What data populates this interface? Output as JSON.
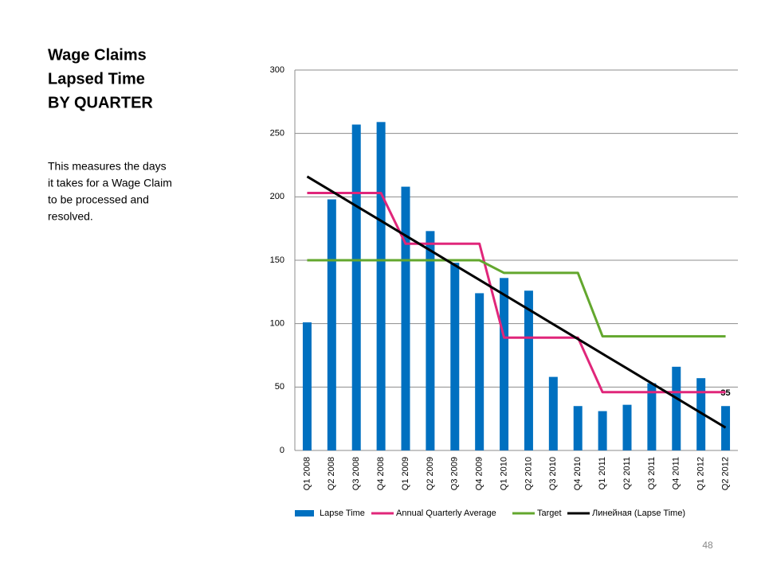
{
  "title_lines": [
    "Wage Claims",
    "Lapsed Time",
    "BY QUARTER"
  ],
  "description_lines": [
    "This measures the days",
    "it takes for a Wage Claim",
    "to be processed and",
    "resolved."
  ],
  "page_number": "48",
  "chart_data": {
    "type": "bar",
    "categories": [
      "Q1 2008",
      "Q2 2008",
      "Q3 2008",
      "Q4 2008",
      "Q1 2009",
      "Q2 2009",
      "Q3 2009",
      "Q4 2009",
      "Q1 2010",
      "Q2 2010",
      "Q3 2010",
      "Q4 2010",
      "Q1 2011",
      "Q2 2011",
      "Q3 2011",
      "Q4 2011",
      "Q1 2012",
      "Q2 2012"
    ],
    "series": [
      {
        "name": "Lapse Time",
        "type": "bar",
        "color": "#0070c0",
        "values": [
          101,
          198,
          257,
          259,
          208,
          173,
          148,
          124,
          136,
          126,
          58,
          35,
          31,
          36,
          53,
          66,
          57,
          35
        ],
        "value_labels": [
          null,
          null,
          null,
          null,
          null,
          null,
          null,
          null,
          null,
          null,
          null,
          null,
          null,
          null,
          null,
          null,
          null,
          "35"
        ]
      },
      {
        "name": "Annual Quarterly Average",
        "type": "line",
        "color": "#e0267a",
        "values": [
          203,
          203,
          203,
          203,
          163,
          163,
          163,
          163,
          89,
          89,
          89,
          89,
          46,
          46,
          46,
          46,
          46,
          46
        ]
      },
      {
        "name": "Target",
        "type": "line",
        "color": "#63a72e",
        "values": [
          150,
          150,
          150,
          150,
          150,
          150,
          150,
          150,
          140,
          140,
          140,
          140,
          90,
          90,
          90,
          90,
          90,
          90
        ]
      },
      {
        "name": "Линейная (Lapse Time)",
        "type": "line",
        "color": "#000000",
        "values": [
          216,
          204.4,
          192.7,
          181.1,
          169.4,
          157.8,
          146.1,
          134.5,
          122.8,
          111.2,
          99.5,
          87.9,
          76.2,
          64.6,
          52.9,
          41.3,
          29.6,
          18
        ]
      }
    ],
    "ylim": [
      0,
      300
    ],
    "yticks": [
      0,
      50,
      100,
      150,
      200,
      250,
      300
    ],
    "grid": true,
    "legend": "bottom"
  }
}
